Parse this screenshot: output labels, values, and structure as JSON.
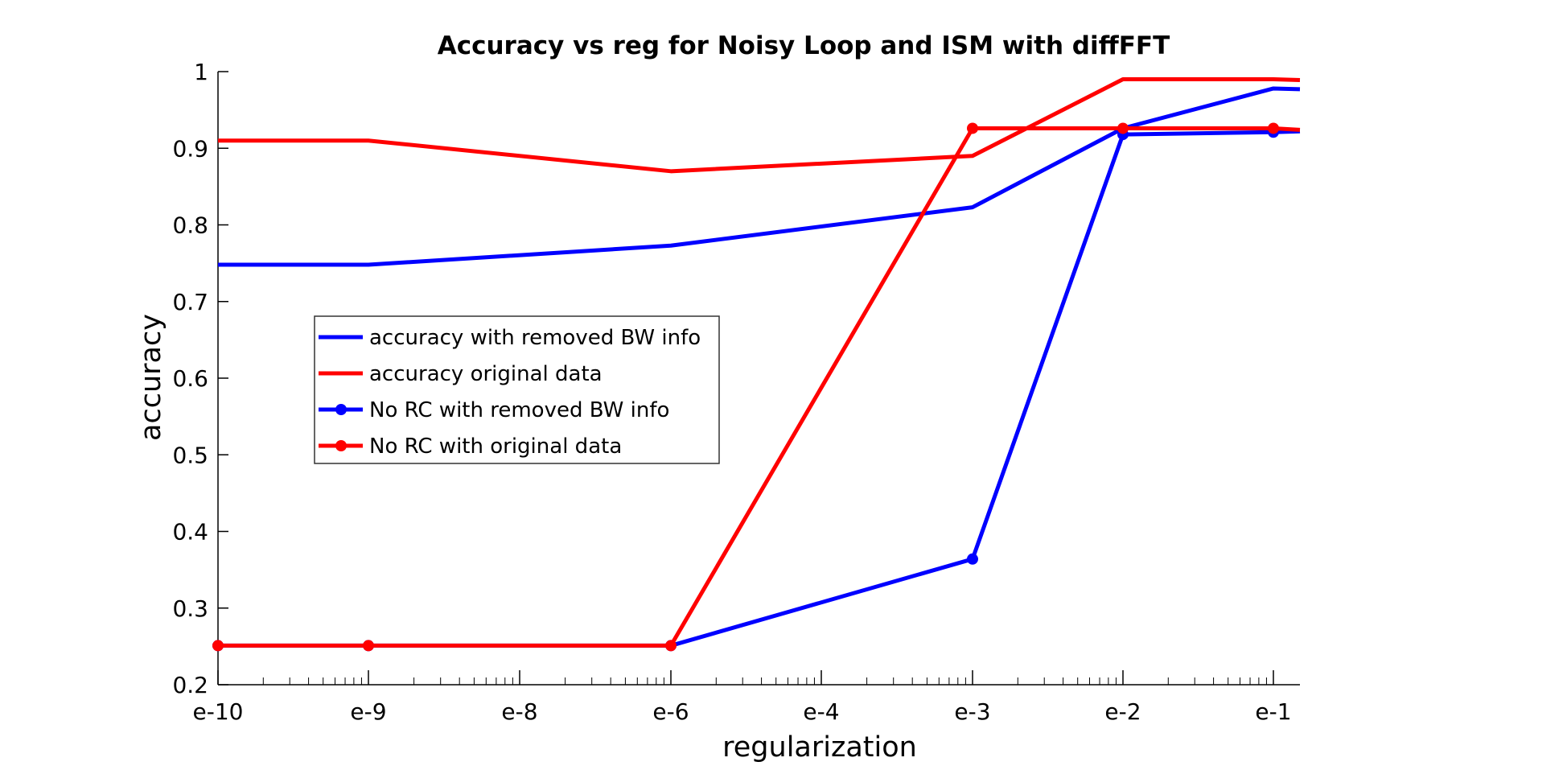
{
  "chart_data": {
    "type": "line",
    "title": "Accuracy vs reg for Noisy Loop and ISM with diffFFT",
    "xlabel": "regularization",
    "ylabel": "accuracy",
    "categories": [
      "e-10",
      "e-9",
      "e-8",
      "e-6",
      "e-4",
      "e-3",
      "e-2",
      "e-1"
    ],
    "ylim": [
      0.2,
      1
    ],
    "yticks": [
      "0.2",
      "0.3",
      "0.4",
      "0.5",
      "0.6",
      "0.7",
      "0.8",
      "0.9",
      "1"
    ],
    "x_scale": "log",
    "grid": false,
    "legend_position": "center-left",
    "series": [
      {
        "name": "accuracy with removed BW info",
        "color": "#0000ff",
        "marker": "none",
        "points": [
          {
            "x": "e-10",
            "y": 0.748
          },
          {
            "x": "e-9",
            "y": 0.748
          },
          {
            "x": "e-6",
            "y": 0.773
          },
          {
            "x": "e-3",
            "y": 0.823
          },
          {
            "x": "e-2",
            "y": 0.926
          },
          {
            "x": "e-1",
            "y": 0.978
          },
          {
            "x": "end",
            "y": 0.977
          }
        ]
      },
      {
        "name": "accuracy original data",
        "color": "#ff0000",
        "marker": "none",
        "points": [
          {
            "x": "e-10",
            "y": 0.91
          },
          {
            "x": "e-9",
            "y": 0.91
          },
          {
            "x": "e-6",
            "y": 0.87
          },
          {
            "x": "e-3",
            "y": 0.89
          },
          {
            "x": "e-2",
            "y": 0.99
          },
          {
            "x": "e-1",
            "y": 0.99
          },
          {
            "x": "end",
            "y": 0.989
          }
        ]
      },
      {
        "name": "No RC with removed BW info",
        "color": "#0000ff",
        "marker": "circle",
        "points": [
          {
            "x": "e-10",
            "y": 0.251
          },
          {
            "x": "e-9",
            "y": 0.251
          },
          {
            "x": "e-6",
            "y": 0.251
          },
          {
            "x": "e-3",
            "y": 0.364
          },
          {
            "x": "e-2",
            "y": 0.918
          },
          {
            "x": "e-1",
            "y": 0.921
          },
          {
            "x": "end",
            "y": 0.922
          }
        ]
      },
      {
        "name": "No RC with original data",
        "color": "#ff0000",
        "marker": "circle",
        "points": [
          {
            "x": "e-10",
            "y": 0.251
          },
          {
            "x": "e-9",
            "y": 0.251
          },
          {
            "x": "e-6",
            "y": 0.251
          },
          {
            "x": "e-3",
            "y": 0.926
          },
          {
            "x": "e-2",
            "y": 0.926
          },
          {
            "x": "e-1",
            "y": 0.926
          },
          {
            "x": "end",
            "y": 0.924
          }
        ]
      }
    ]
  }
}
